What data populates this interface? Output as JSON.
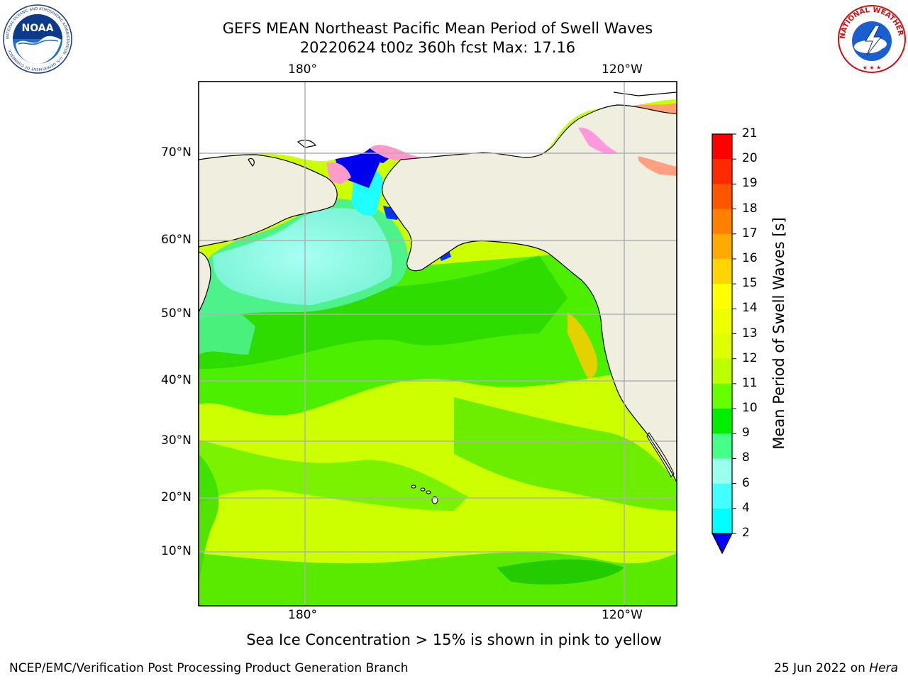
{
  "title": {
    "line1": "GEFS MEAN Northeast Pacific Mean Period of Swell Waves",
    "line2": "20220624 t00z 360h fcst   Max: 17.16"
  },
  "logos": {
    "left_text": "NOAA",
    "left_ring_text": "NATIONAL OCEANIC AND ATMOSPHERIC ADMINISTRATION · U.S. DEPARTMENT OF COMMERCE",
    "right_ring_text": "NATIONAL WEATHER SERVICE"
  },
  "map": {
    "lon_ticks": [
      "180°",
      "120°W"
    ],
    "lat_ticks": [
      "70°N",
      "60°N",
      "50°N",
      "40°N",
      "30°N",
      "20°N",
      "10°N"
    ],
    "colors": {
      "land": "#efeedf",
      "grid": "#b0b0b0",
      "ocean_yellowgreen": "#ccff00",
      "ocean_green": "#5af000",
      "ocean_lime": "#2de000",
      "ocean_mint": "#4df28a",
      "ocean_cyan": "#80ffe0",
      "ice_pink": "#ff99cc",
      "ice_orange": "#ffb060",
      "ice_blue": "#0000ee"
    }
  },
  "colorbar": {
    "label": "Mean Period of Swell Waves [s]",
    "ticks": [
      "21",
      "20",
      "19",
      "18",
      "17",
      "16",
      "15",
      "14",
      "13",
      "12",
      "11",
      "10",
      "9",
      "8",
      "6",
      "4",
      "2"
    ],
    "colors": [
      "#ff0000",
      "#ff2a00",
      "#ff5500",
      "#ff8000",
      "#ffaa00",
      "#ffd400",
      "#ffff00",
      "#eeff00",
      "#ddff00",
      "#bbff00",
      "#66ff00",
      "#00ee00",
      "#44ff88",
      "#99ffee",
      "#44ffff",
      "#00ffff",
      "#00ccff",
      "#0066ff"
    ],
    "extend_color": "#0000ff"
  },
  "caption": "Sea Ice Concentration > 15% is shown in pink to yellow",
  "footer": {
    "left": "NCEP/EMC/Verification Post Processing Product Generation Branch",
    "right_date": "25 Jun 2022 on ",
    "right_host": "Hera"
  }
}
